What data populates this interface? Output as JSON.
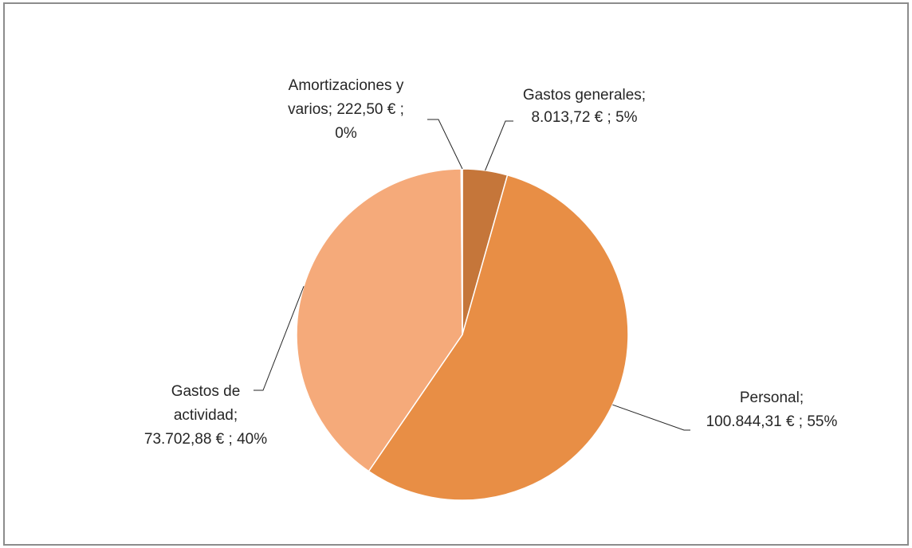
{
  "chart_data": {
    "type": "pie",
    "currency_symbol": "€",
    "start_angle_deg": 0,
    "direction": "clockwise",
    "slices": [
      {
        "name": "Gastos generales",
        "value": 8013.72,
        "percent": 5,
        "color": "#C5763A",
        "label_lines": [
          "Gastos generales;",
          "8.013,72 € ; 5%"
        ]
      },
      {
        "name": "Personal",
        "value": 100844.31,
        "percent": 55,
        "color": "#E88E45",
        "label_lines": [
          "Personal;",
          "100.844,31 € ; 55%"
        ]
      },
      {
        "name": "Gastos de actividad",
        "value": 73702.88,
        "percent": 40,
        "color": "#F5AA7A",
        "label_lines": [
          "Gastos de",
          "actividad;",
          "73.702,88 € ; 40%"
        ]
      },
      {
        "name": "Amortizaciones y varios",
        "value": 222.5,
        "percent": 0,
        "color": "#F8C9AA",
        "label_lines": [
          "Amortizaciones y",
          "varios;  222,50 € ;",
          "0%"
        ]
      }
    ],
    "legend": "none",
    "data_labels": "outside with leader lines",
    "border_color": "#8C8C8C"
  }
}
